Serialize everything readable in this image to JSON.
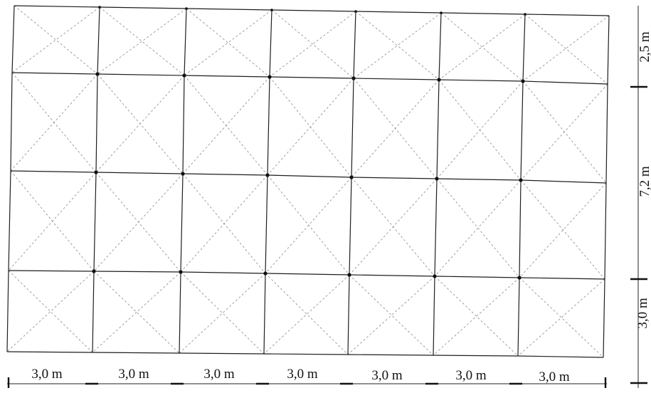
{
  "diagram": {
    "bottom_dimensions": [
      "3,0 m",
      "3,0 m",
      "3,0 m",
      "3,0 m",
      "3,0 m",
      "3,0 m",
      "3,0 m"
    ],
    "right_dimensions": [
      "2,5 m",
      "7,2 m",
      "3,0 m"
    ]
  }
}
